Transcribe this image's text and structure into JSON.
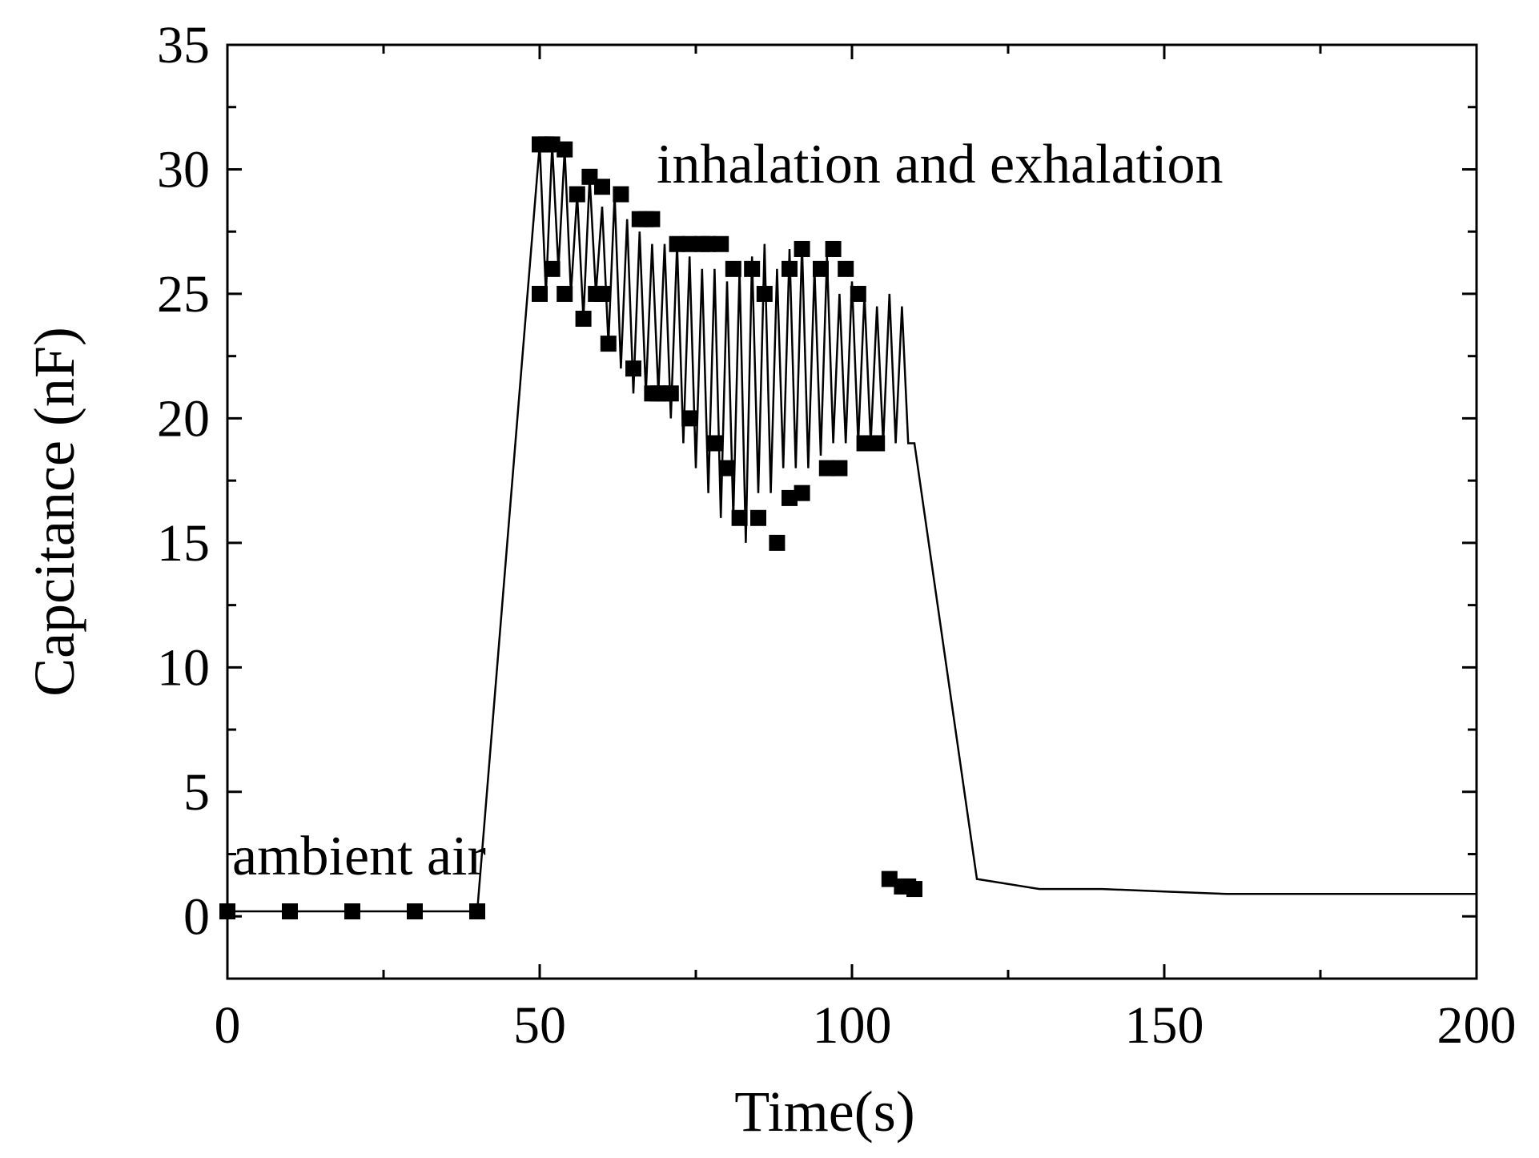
{
  "chart_data": {
    "type": "scatter",
    "title": "",
    "xlabel": "Time(s)",
    "ylabel": "Capcitance (nF)",
    "xlim": [
      0,
      200
    ],
    "ylim": [
      -2.5,
      35
    ],
    "xticks": [
      0,
      50,
      100,
      150,
      200
    ],
    "yticks": [
      0,
      5,
      10,
      15,
      20,
      25,
      30,
      35
    ],
    "grid": false,
    "annotations": [
      {
        "text": "ambient air",
        "x": 2,
        "y": 1.9
      },
      {
        "text": "inhalation and exhalation",
        "x": 69,
        "y": 29.2
      }
    ],
    "series": [
      {
        "name": "Capacitance",
        "line": {
          "x": [
            0,
            10,
            20,
            30,
            40,
            50,
            51,
            52,
            53,
            54,
            55,
            56,
            57,
            58,
            59,
            60,
            61,
            62,
            63,
            64,
            65,
            66,
            67,
            68,
            69,
            70,
            71,
            72,
            73,
            74,
            75,
            76,
            77,
            78,
            79,
            80,
            81,
            82,
            83,
            84,
            85,
            86,
            87,
            88,
            89,
            90,
            91,
            92,
            93,
            94,
            95,
            96,
            97,
            98,
            99,
            100,
            101,
            102,
            103,
            104,
            105,
            106,
            107,
            108,
            109,
            110,
            120,
            130,
            140,
            150,
            160,
            170,
            200
          ],
          "y": [
            0.2,
            0.2,
            0.2,
            0.2,
            0.2,
            31,
            25,
            31,
            26,
            30.8,
            25,
            29,
            24,
            29.7,
            25,
            28.5,
            23,
            29,
            22,
            28,
            21,
            27.5,
            21,
            27,
            21,
            27,
            20,
            27,
            19,
            26.5,
            18,
            26,
            17,
            26,
            16,
            25.5,
            16,
            26,
            15,
            26.5,
            17,
            27,
            17,
            26,
            18,
            26.8,
            18,
            27,
            18,
            26,
            18.5,
            26.5,
            19,
            25,
            19,
            25.5,
            19,
            25,
            19,
            24.5,
            19,
            25,
            19,
            24.5,
            19,
            19,
            1.5,
            1.1,
            1.1,
            1.0,
            0.9,
            0.9,
            0.9
          ]
        },
        "markers": {
          "x": [
            0,
            10,
            20,
            30,
            40,
            50,
            50,
            51,
            52,
            52,
            54,
            54,
            56,
            57,
            58,
            59,
            60,
            60,
            61,
            63,
            65,
            66,
            67,
            68,
            68,
            69,
            70,
            71,
            72,
            74,
            74,
            76,
            77,
            78,
            79,
            80,
            81,
            82,
            84,
            85,
            86,
            88,
            90,
            90,
            92,
            92,
            95,
            96,
            97,
            98,
            99,
            101,
            102,
            103,
            104,
            106,
            108,
            109,
            110
          ],
          "y": [
            0.2,
            0.2,
            0.2,
            0.2,
            0.2,
            31,
            25,
            31,
            31,
            26,
            30.8,
            25,
            29,
            24,
            29.7,
            25,
            25,
            29.3,
            23,
            29,
            22,
            28,
            28,
            28,
            21,
            21,
            21,
            21,
            27,
            20,
            27,
            27,
            27,
            19,
            27,
            18,
            26,
            16,
            26,
            16,
            25,
            15,
            26,
            16.8,
            17,
            26.8,
            26,
            18,
            26.8,
            18,
            26,
            25,
            19,
            19,
            19,
            1.5,
            1.2,
            1.2,
            1.1
          ]
        }
      }
    ]
  }
}
